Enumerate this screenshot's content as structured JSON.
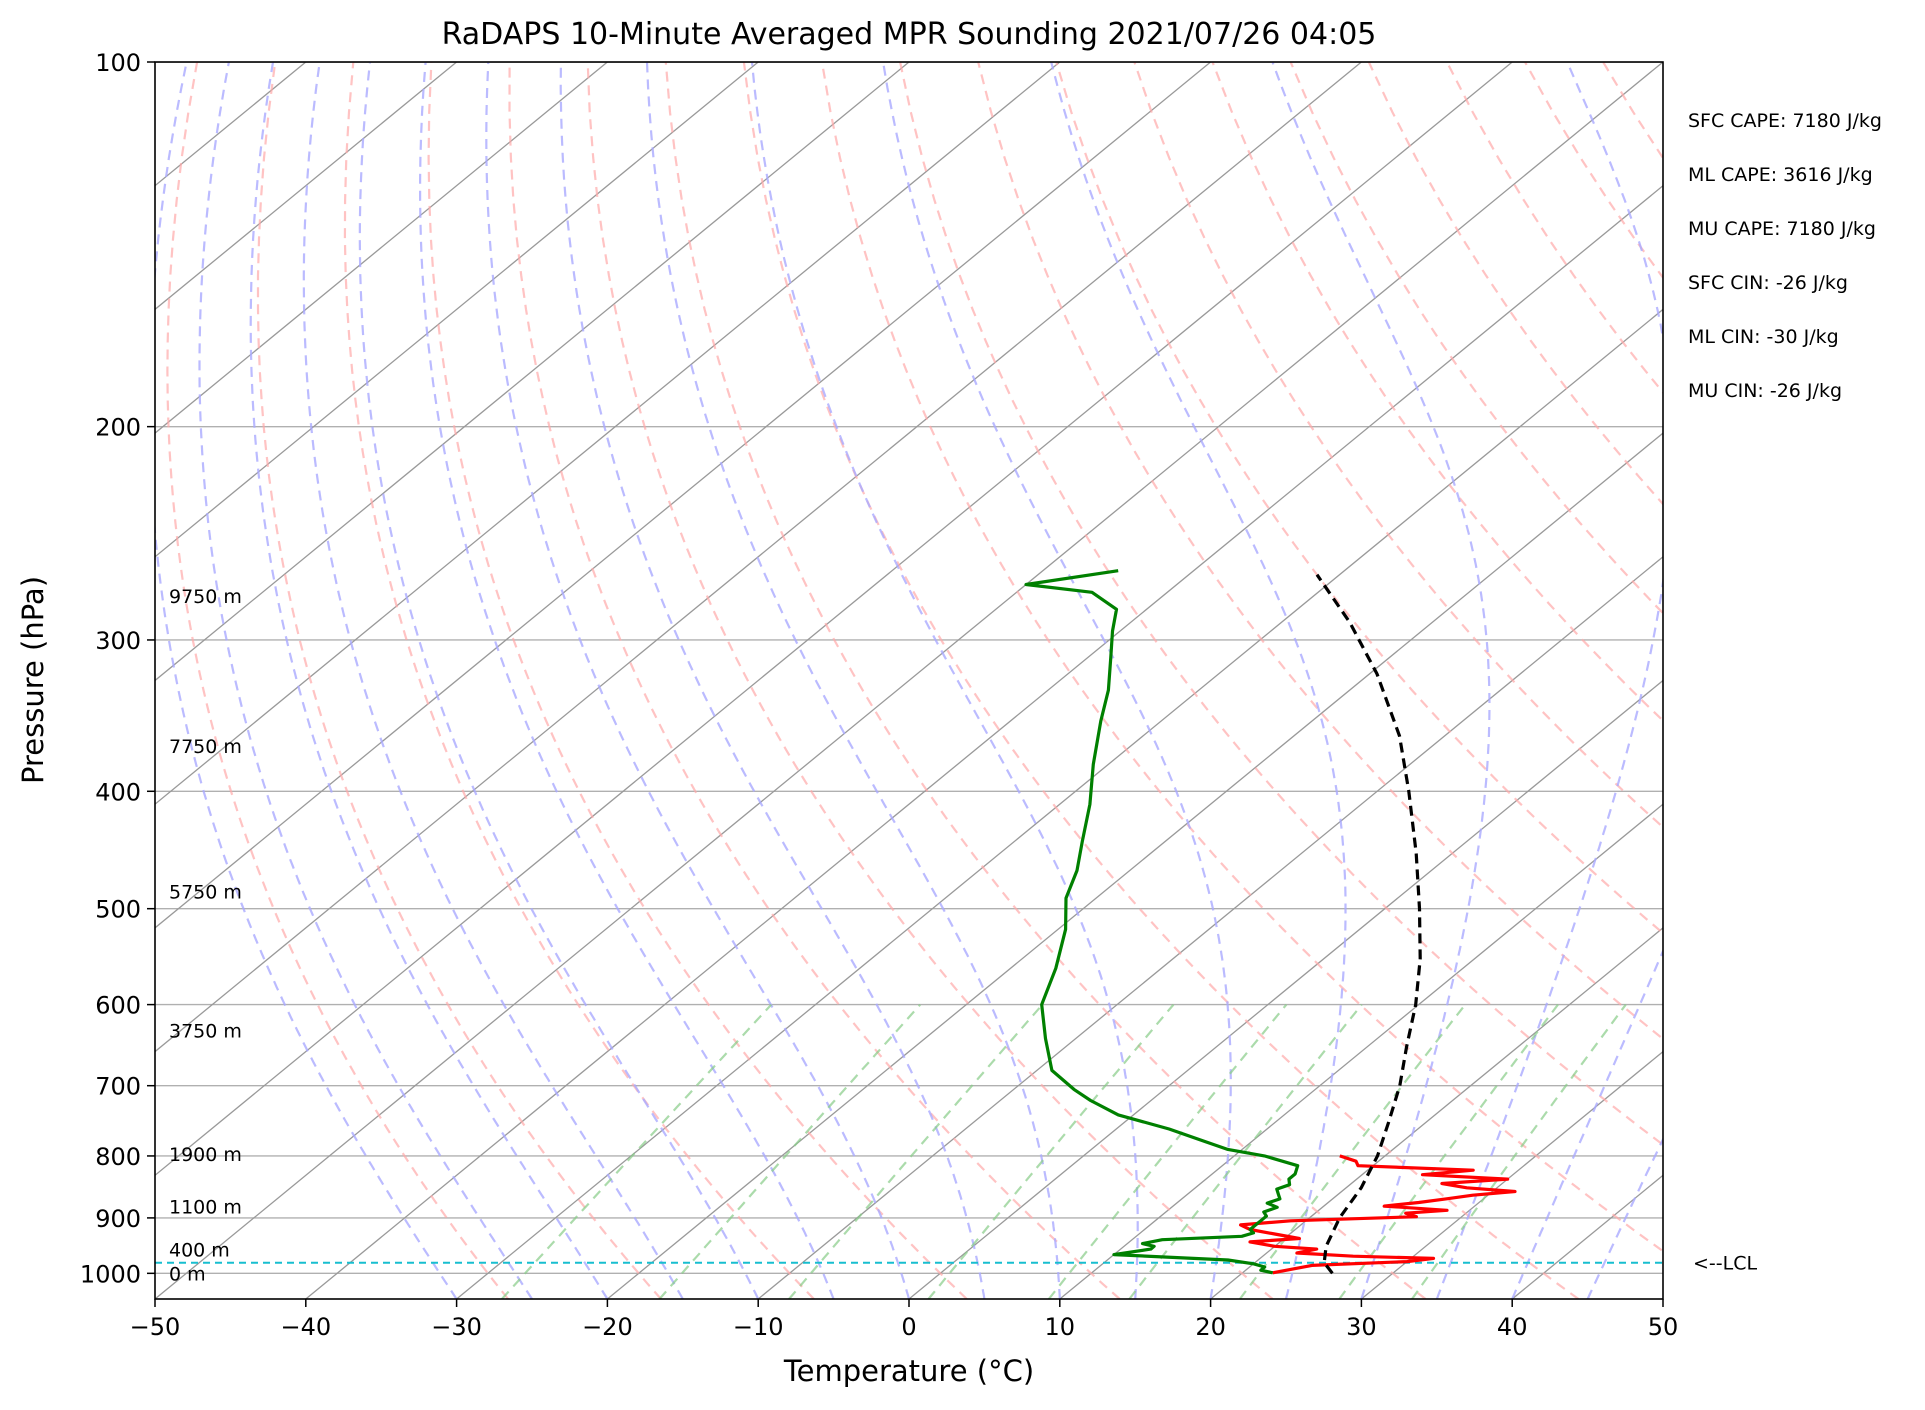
{
  "chart_data": {
    "type": "line",
    "subtype": "skew-t log-p sounding",
    "title": "RaDAPS 10-Minute Averaged MPR Sounding 2021/07/26 04:05",
    "xlabel": "Temperature (°C)",
    "ylabel": "Pressure (hPa)",
    "xlim": [
      -50,
      50
    ],
    "ylim": [
      1050,
      100
    ],
    "y_scale": "log",
    "x_ticks": [
      "−50",
      "−40",
      "−30",
      "−20",
      "−10",
      "0",
      "10",
      "20",
      "30",
      "40",
      "50"
    ],
    "y_ticks": [
      {
        "p": 100,
        "label": "100"
      },
      {
        "p": 200,
        "label": "200"
      },
      {
        "p": 300,
        "label": "300"
      },
      {
        "p": 400,
        "label": "400"
      },
      {
        "p": 500,
        "label": "500"
      },
      {
        "p": 600,
        "label": "600"
      },
      {
        "p": 700,
        "label": "700"
      },
      {
        "p": 800,
        "label": "800"
      },
      {
        "p": 900,
        "label": "900"
      },
      {
        "p": 1000,
        "label": "1000"
      }
    ],
    "grid": true,
    "height_labels": [
      {
        "p": 276,
        "label": "9750 m"
      },
      {
        "p": 367,
        "label": "7750 m"
      },
      {
        "p": 484,
        "label": "5750 m"
      },
      {
        "p": 630,
        "label": "3750 m"
      },
      {
        "p": 797,
        "label": "1900 m"
      },
      {
        "p": 881,
        "label": "1100 m"
      },
      {
        "p": 956,
        "label": "400 m"
      },
      {
        "p": 1000,
        "label": "0 m"
      }
    ],
    "stats": [
      "SFC CAPE: 7180 J/kg",
      "ML CAPE: 3616 J/kg",
      "MU CAPE: 7180 J/kg",
      "SFC CIN: -26 J/kg",
      "ML CIN: -30 J/kg",
      "MU CIN: -26 J/kg"
    ],
    "lcl": {
      "p": 980,
      "label": "<--LCL"
    },
    "colors": {
      "temperature": "#ff0000",
      "dewpoint": "#008000",
      "parcel": "#000000",
      "lcl": "#17becf",
      "dry_adiabats": "#ffaaaa",
      "moist_adiabats": "#aaaaff",
      "mixing_ratio": "#88cc88",
      "isotherms": "#999999"
    },
    "series": [
      {
        "key": "temperature",
        "points": [
          [
            999,
            22
          ],
          [
            985,
            24
          ],
          [
            978,
            30
          ],
          [
            972,
            31.5
          ],
          [
            968,
            26
          ],
          [
            962,
            22
          ],
          [
            955,
            23
          ],
          [
            950,
            20
          ],
          [
            942,
            18
          ],
          [
            936,
            21
          ],
          [
            928,
            19
          ],
          [
            920,
            17
          ],
          [
            912,
            16
          ],
          [
            905,
            19
          ],
          [
            898,
            27
          ],
          [
            892,
            26
          ],
          [
            887,
            28.5
          ],
          [
            880,
            24
          ],
          [
            874,
            26
          ],
          [
            868,
            27.5
          ],
          [
            862,
            29
          ],
          [
            856,
            31.5
          ],
          [
            850,
            28
          ],
          [
            843,
            26
          ],
          [
            836,
            30
          ],
          [
            829,
            24
          ],
          [
            822,
            27
          ],
          [
            815,
            19
          ],
          [
            808,
            18.5
          ],
          [
            800,
            17
          ]
        ]
      },
      {
        "key": "dewpoint",
        "points": [
          [
            999,
            22
          ],
          [
            994,
            21
          ],
          [
            988,
            21
          ],
          [
            982,
            20
          ],
          [
            975,
            18
          ],
          [
            965,
            10
          ],
          [
            955,
            12
          ],
          [
            950,
            12
          ],
          [
            945,
            11
          ],
          [
            938,
            12
          ],
          [
            932,
            17
          ],
          [
            926,
            17.5
          ],
          [
            920,
            17
          ],
          [
            912,
            17
          ],
          [
            905,
            17
          ],
          [
            897,
            17
          ],
          [
            890,
            16.5
          ],
          [
            882,
            17
          ],
          [
            875,
            16
          ],
          [
            868,
            16.5
          ],
          [
            860,
            16
          ],
          [
            852,
            15.5
          ],
          [
            845,
            16
          ],
          [
            836,
            15.5
          ],
          [
            828,
            15.5
          ],
          [
            815,
            15
          ],
          [
            800,
            12
          ],
          [
            790,
            9
          ],
          [
            760,
            3.5
          ],
          [
            740,
            -1
          ],
          [
            720,
            -4
          ],
          [
            705,
            -6
          ],
          [
            680,
            -9
          ],
          [
            640,
            -12
          ],
          [
            600,
            -15
          ],
          [
            560,
            -17
          ],
          [
            520,
            -19.5
          ],
          [
            490,
            -22
          ],
          [
            465,
            -23.5
          ],
          [
            440,
            -25.5
          ],
          [
            410,
            -28
          ],
          [
            380,
            -31
          ],
          [
            350,
            -34
          ],
          [
            330,
            -36
          ],
          [
            310,
            -38.5
          ],
          [
            295,
            -40.5
          ],
          [
            283,
            -42
          ],
          [
            274,
            -45
          ],
          [
            270,
            -50
          ],
          [
            263,
            -45
          ]
        ]
      },
      {
        "key": "parcel",
        "points": [
          [
            1000,
            26
          ],
          [
            980,
            24.6
          ],
          [
            950,
            23.4
          ],
          [
            900,
            22.0
          ],
          [
            850,
            21.0
          ],
          [
            800,
            19.5
          ],
          [
            750,
            17.5
          ],
          [
            700,
            15.3
          ],
          [
            650,
            12.6
          ],
          [
            600,
            9.8
          ],
          [
            550,
            6.4
          ],
          [
            500,
            2.3
          ],
          [
            450,
            -2.4
          ],
          [
            400,
            -7.9
          ],
          [
            360,
            -13.0
          ],
          [
            320,
            -19.5
          ],
          [
            290,
            -25.5
          ],
          [
            265,
            -31.5
          ]
        ]
      }
    ]
  }
}
